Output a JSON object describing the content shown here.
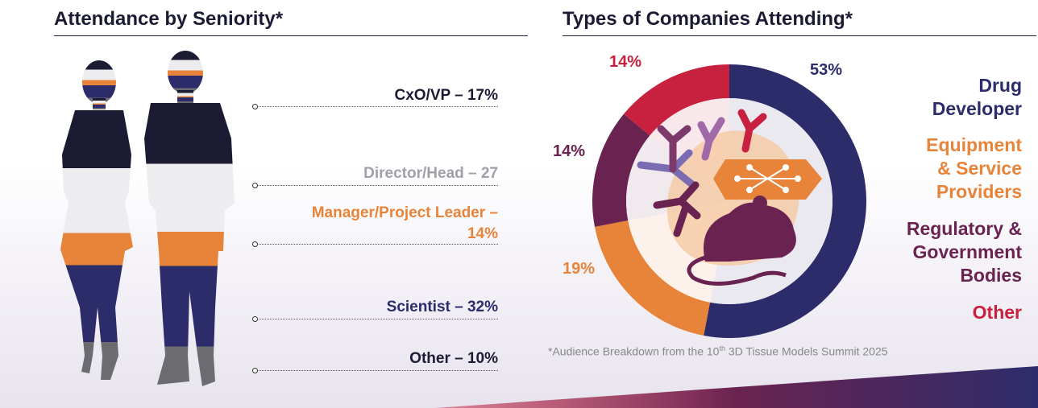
{
  "left_title": "Attendance by Seniority*",
  "right_title": "Types of Companies Attending*",
  "seniority": [
    {
      "label": "CxO/VP – 17%",
      "color": "#1b1b33"
    },
    {
      "label": "Director/Head – 27",
      "color": "#a0a0a8"
    },
    {
      "label": "Manager/Project Leader –",
      "label2": "14%",
      "color": "#e8833a"
    },
    {
      "label": "Scientist – 32%",
      "color": "#2d2c6b"
    },
    {
      "label": "Other – 10%",
      "color": "#1b1b33"
    }
  ],
  "chart_data": {
    "type": "pie",
    "title": "Types of Companies Attending*",
    "slices": [
      {
        "label": "Drug Developer",
        "value": 53,
        "color": "#2d2c6b"
      },
      {
        "label": "Equipment & Service Providers",
        "value": 19,
        "color": "#e8833a"
      },
      {
        "label": "Regulatory & Government Bodies",
        "value": 14,
        "color": "#6a2350"
      },
      {
        "label": "Other",
        "value": 14,
        "color": "#c8203f"
      }
    ],
    "data_labels": [
      "53%",
      "19%",
      "14%",
      "14%"
    ]
  },
  "legend": {
    "drug": "Drug Developer",
    "drug_l1": "Drug",
    "drug_l2": "Developer",
    "equip_l1": "Equipment",
    "equip_l2": "& Service",
    "equip_l3": "Providers",
    "reg_l1": "Regulatory &",
    "reg_l2": "Government",
    "reg_l3": "Bodies",
    "other": "Other"
  },
  "footnote": {
    "pre": "*Audience Breakdown from the 10",
    "sup": "th",
    "post": " 3D Tissue Models Summit 2025"
  },
  "colors": {
    "navy": "#2d2c6b",
    "orange": "#e8833a",
    "plum": "#6a2350",
    "red": "#c8203f",
    "dark": "#1b1b33",
    "grey": "#a0a0a8"
  }
}
